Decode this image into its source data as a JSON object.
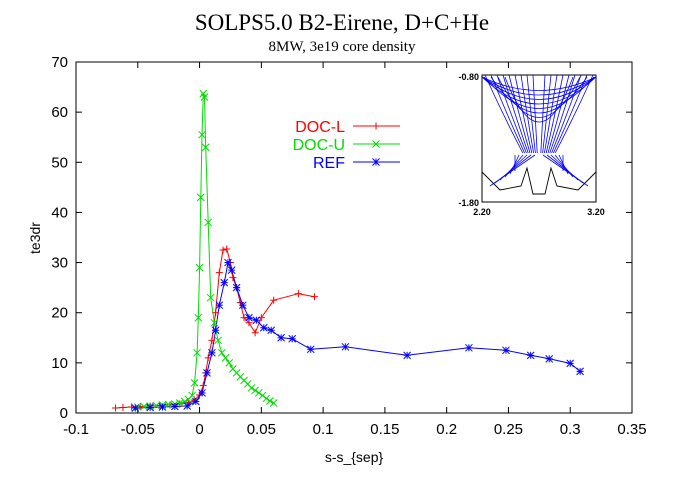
{
  "chart_data": {
    "type": "line",
    "title": "SOLPS5.0 B2-Eirene, D+C+He",
    "subtitle": "8MW, 3e19 core density",
    "xlabel": "s-s_{sep}",
    "ylabel": "te3dr",
    "xlim": [
      -0.1,
      0.35
    ],
    "ylim": [
      0,
      70
    ],
    "xticks": [
      "-0.1",
      "-0.05",
      "0",
      "0.05",
      "0.1",
      "0.15",
      "0.2",
      "0.25",
      "0.3",
      "0.35"
    ],
    "yticks": [
      "0",
      "10",
      "20",
      "30",
      "40",
      "50",
      "60",
      "70"
    ],
    "grid": false,
    "legend_position": "upper-center",
    "series": [
      {
        "name": "DOC-L",
        "color": "#ff0000",
        "marker": "plus",
        "points": [
          [
            -0.068,
            1.0
          ],
          [
            -0.062,
            1.1
          ],
          [
            -0.055,
            1.2
          ],
          [
            -0.048,
            1.3
          ],
          [
            -0.04,
            1.4
          ],
          [
            -0.032,
            1.5
          ],
          [
            -0.024,
            1.6
          ],
          [
            -0.016,
            1.8
          ],
          [
            -0.009,
            2.1
          ],
          [
            -0.004,
            2.6
          ],
          [
            0.0,
            3.6
          ],
          [
            0.003,
            5.5
          ],
          [
            0.005,
            8.0
          ],
          [
            0.007,
            11.0
          ],
          [
            0.01,
            14.5
          ],
          [
            0.013,
            20.0
          ],
          [
            0.016,
            28.0
          ],
          [
            0.019,
            32.5
          ],
          [
            0.022,
            32.7
          ],
          [
            0.025,
            30.0
          ],
          [
            0.027,
            27.0
          ],
          [
            0.03,
            25.0
          ],
          [
            0.033,
            22.0
          ],
          [
            0.036,
            19.0
          ],
          [
            0.04,
            18.0
          ],
          [
            0.045,
            16.0
          ],
          [
            0.05,
            19.0
          ],
          [
            0.06,
            22.5
          ],
          [
            0.08,
            23.8
          ],
          [
            0.093,
            23.2
          ]
        ]
      },
      {
        "name": "DOC-U",
        "color": "#00dd00",
        "marker": "x",
        "points": [
          [
            -0.05,
            1.2
          ],
          [
            -0.045,
            1.3
          ],
          [
            -0.04,
            1.4
          ],
          [
            -0.035,
            1.5
          ],
          [
            -0.03,
            1.6
          ],
          [
            -0.025,
            1.7
          ],
          [
            -0.02,
            1.8
          ],
          [
            -0.016,
            2.0
          ],
          [
            -0.012,
            2.3
          ],
          [
            -0.009,
            2.7
          ],
          [
            -0.006,
            3.5
          ],
          [
            -0.004,
            6.0
          ],
          [
            -0.002,
            12.0
          ],
          [
            -0.001,
            19.0
          ],
          [
            0.0,
            29.0
          ],
          [
            0.001,
            43.0
          ],
          [
            0.002,
            55.5
          ],
          [
            0.003,
            63.7
          ],
          [
            0.004,
            63.0
          ],
          [
            0.005,
            53.0
          ],
          [
            0.007,
            38.0
          ],
          [
            0.009,
            23.0
          ],
          [
            0.012,
            18.0
          ],
          [
            0.015,
            14.5
          ],
          [
            0.018,
            12.0
          ],
          [
            0.021,
            11.0
          ],
          [
            0.024,
            10.0
          ],
          [
            0.027,
            8.8
          ],
          [
            0.03,
            8.0
          ],
          [
            0.033,
            7.2
          ],
          [
            0.036,
            6.5
          ],
          [
            0.039,
            5.8
          ],
          [
            0.042,
            5.0
          ],
          [
            0.045,
            4.5
          ],
          [
            0.048,
            4.0
          ],
          [
            0.051,
            3.5
          ],
          [
            0.054,
            2.9
          ],
          [
            0.057,
            2.4
          ],
          [
            0.06,
            2.0
          ]
        ]
      },
      {
        "name": "REF",
        "color": "#0000ff",
        "marker": "star",
        "points": [
          [
            -0.052,
            1.0
          ],
          [
            -0.04,
            1.1
          ],
          [
            -0.03,
            1.2
          ],
          [
            -0.02,
            1.3
          ],
          [
            -0.01,
            1.4
          ],
          [
            -0.003,
            2.3
          ],
          [
            0.002,
            4.0
          ],
          [
            0.006,
            8.0
          ],
          [
            0.01,
            12.0
          ],
          [
            0.013,
            16.5
          ],
          [
            0.016,
            21.5
          ],
          [
            0.02,
            26.0
          ],
          [
            0.023,
            30.0
          ],
          [
            0.026,
            28.5
          ],
          [
            0.03,
            25.0
          ],
          [
            0.035,
            21.5
          ],
          [
            0.04,
            19.0
          ],
          [
            0.046,
            18.5
          ],
          [
            0.052,
            17.0
          ],
          [
            0.058,
            16.5
          ],
          [
            0.066,
            15.0
          ],
          [
            0.075,
            14.8
          ],
          [
            0.09,
            12.7
          ],
          [
            0.118,
            13.2
          ],
          [
            0.168,
            11.5
          ],
          [
            0.218,
            13.0
          ],
          [
            0.248,
            12.5
          ],
          [
            0.268,
            11.5
          ],
          [
            0.283,
            10.8
          ],
          [
            0.3,
            9.9
          ],
          [
            0.308,
            8.3
          ]
        ]
      }
    ]
  },
  "inset": {
    "x_min_label": "2.20",
    "x_max_label": "3.20",
    "y_top_label": "-0.80",
    "y_bottom_label": "-1.80",
    "grid_color": "#0000ff"
  }
}
